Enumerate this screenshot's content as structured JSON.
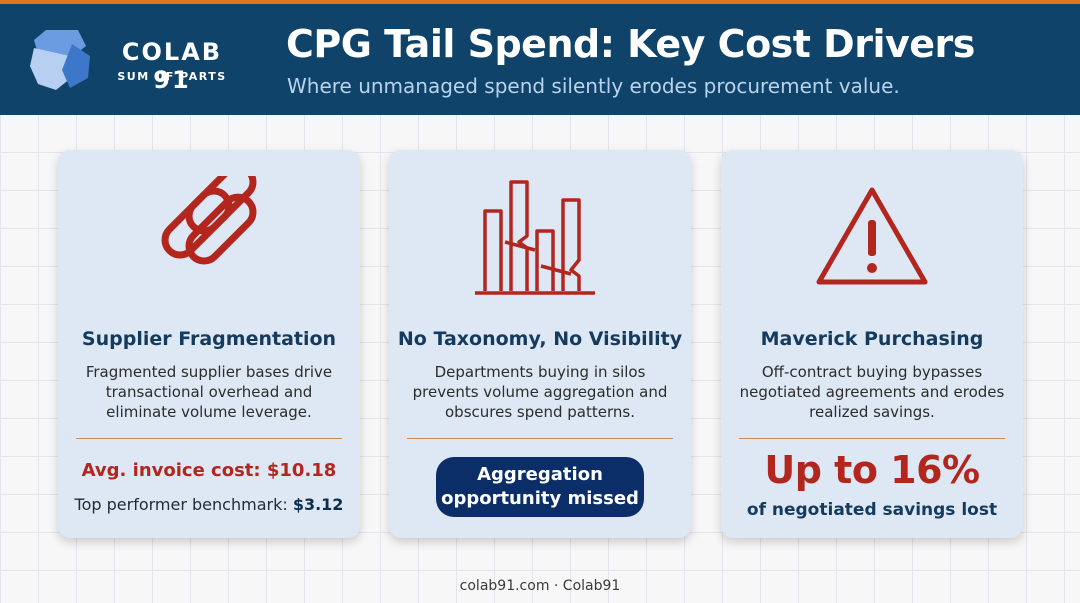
{
  "brand": {
    "name": "COLAB 91",
    "tagline": "SUM OF PARTS"
  },
  "header": {
    "title": "CPG Tail Spend: Key Cost Drivers",
    "subtitle": "Where unmanaged spend silently erodes procurement value."
  },
  "cards": [
    {
      "icon": "chain-link-icon",
      "title": "Supplier Fragmentation",
      "description": "Fragmented supplier bases drive transactional overhead and eliminate volume leverage.",
      "stat_primary": "Avg. invoice cost: $10.18",
      "stat_secondary_label": "Top performer benchmark:",
      "stat_secondary_value": "$3.12"
    },
    {
      "icon": "broken-bar-chart-icon",
      "title": "No Taxonomy, No Visibility",
      "description": "Departments buying in silos prevents volume aggregation and obscures spend patterns.",
      "badge_line1": "Aggregation",
      "badge_line2": "opportunity missed"
    },
    {
      "icon": "warning-triangle-icon",
      "title": "Maverick Purchasing",
      "description": "Off-contract buying bypasses negotiated agreements and erodes realized savings.",
      "big_stat": "Up to 16%",
      "big_stat_caption": "of negotiated savings lost"
    }
  ],
  "footer": {
    "text": "colab91.com · Colab91"
  },
  "colors": {
    "header_bg": "#0f4369",
    "accent_orange": "#e0761d",
    "alert_red": "#b3261e",
    "card_bg": "#dde8f4",
    "badge_navy": "#0c2e68"
  }
}
